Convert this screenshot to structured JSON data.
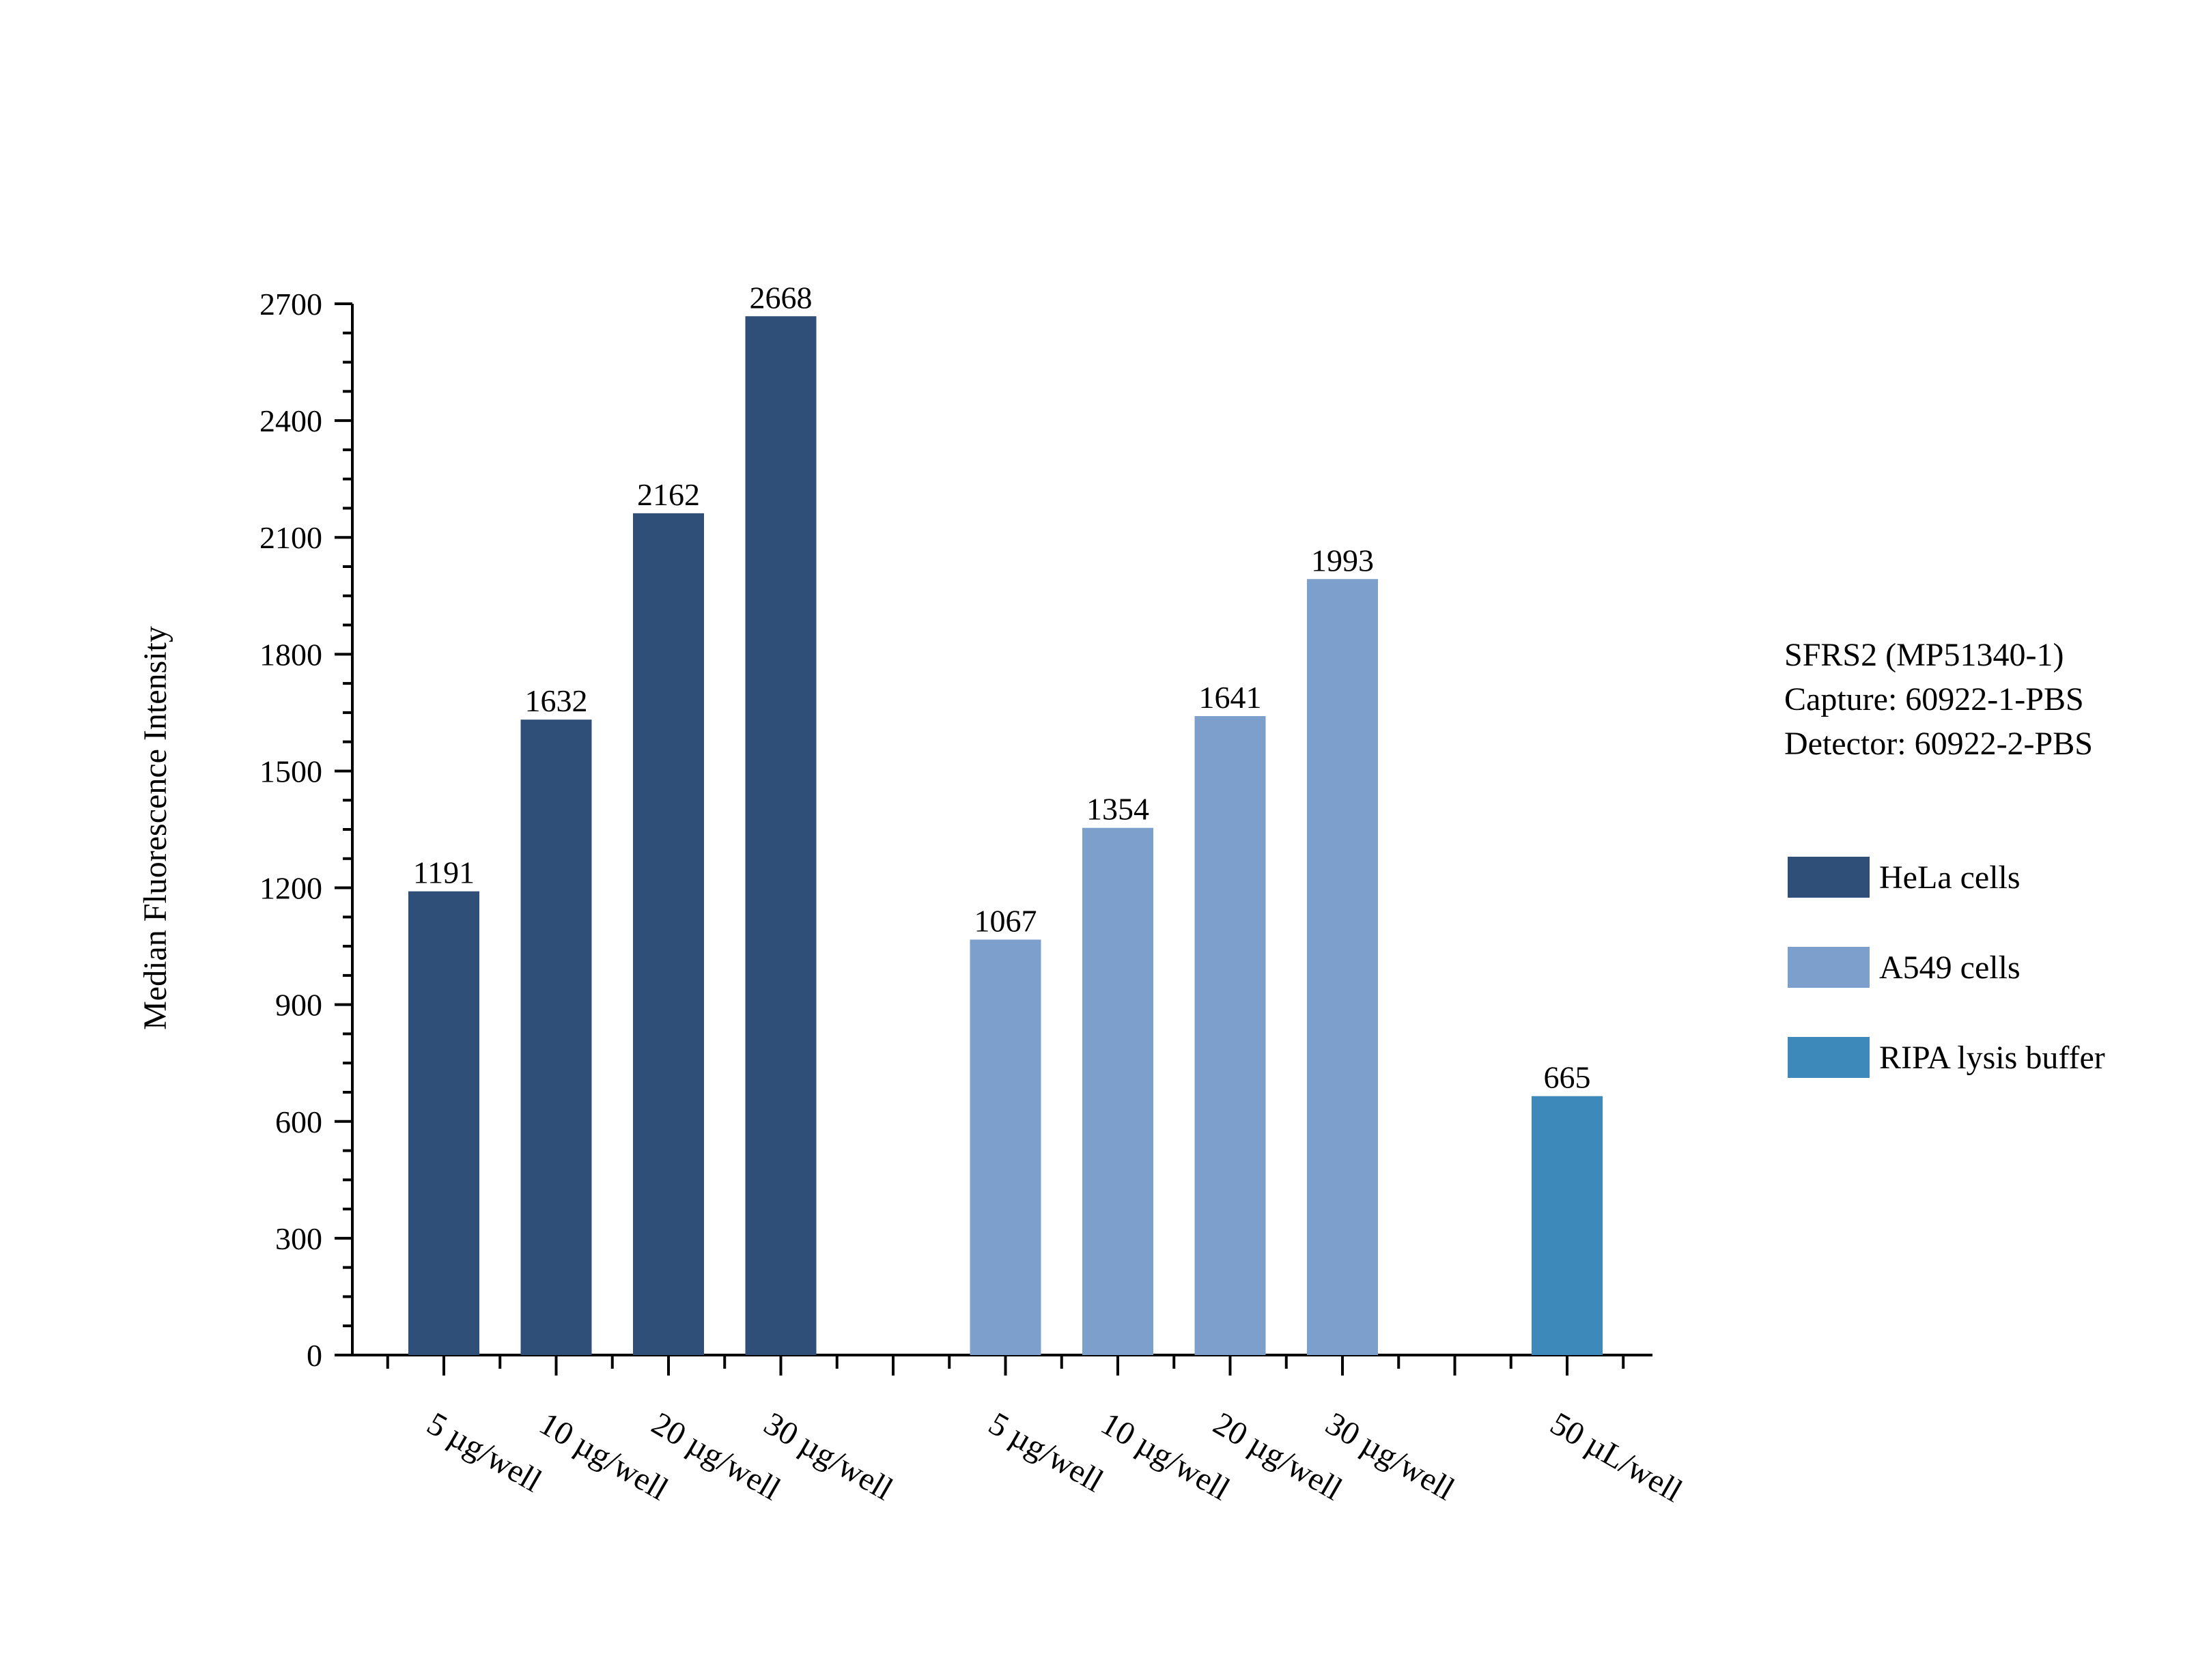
{
  "chart_data": {
    "type": "bar",
    "title": "",
    "ylabel": "Median Fluorescence Intensity",
    "xlabel": "",
    "ylim": [
      0,
      2700
    ],
    "yticks": [
      0,
      300,
      600,
      900,
      1200,
      1500,
      1800,
      2100,
      2400,
      2700
    ],
    "grid": false,
    "legend_position": "right",
    "annotation_lines": [
      "SFRS2 (MP51340-1)",
      "Capture: 60922-1-PBS",
      "Detector: 60922-2-PBS"
    ],
    "series": [
      {
        "name": "HeLa cells",
        "color": "#2f4f78",
        "categories": [
          "5 µg/well",
          "10 µg/well",
          "20 µg/well",
          "30 µg/well"
        ],
        "values": [
          1191,
          1632,
          2162,
          2668
        ]
      },
      {
        "name": "A549 cells",
        "color": "#7d9fcc",
        "categories": [
          "5 µg/well",
          "10 µg/well",
          "20 µg/well",
          "30 µg/well"
        ],
        "values": [
          1067,
          1354,
          1641,
          1993
        ]
      },
      {
        "name": "RIPA lysis buffer",
        "color": "#3d89b9",
        "categories": [
          "50 µL/well"
        ],
        "values": [
          665
        ]
      }
    ]
  }
}
